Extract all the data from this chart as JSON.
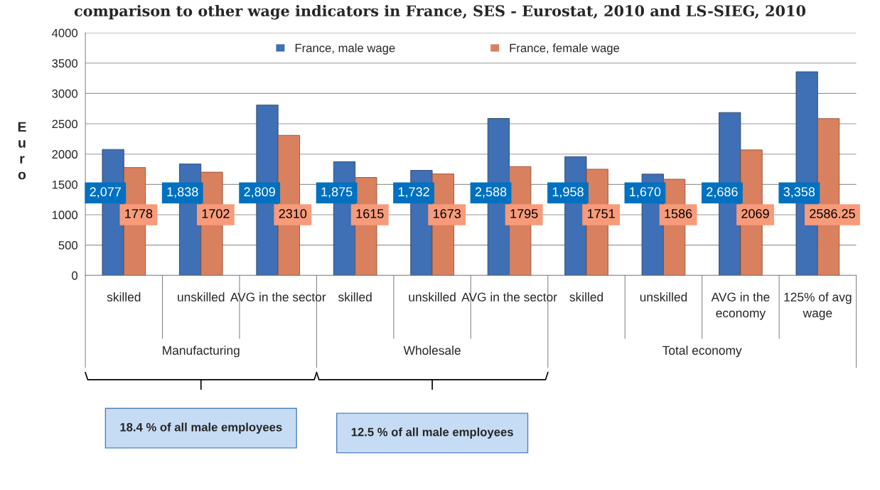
{
  "chart_data": {
    "type": "bar",
    "title": "comparison to other wage indicators in France, SES - Eurostat, 2010 and LS-SIEG, 2010",
    "ylabel": "Euro",
    "categories": [
      "skilled",
      "unskilled",
      "AVG in the sector",
      "skilled",
      "unskilled",
      "AVG in the sector",
      "skilled",
      "unskilled",
      "AVG in the economy",
      "125% of avg wage"
    ],
    "series": [
      {
        "name": "France, male wage",
        "color": "#3f6fb4",
        "values": [
          2077,
          1838,
          2809,
          1875,
          1732,
          2588,
          1958,
          1670,
          2686,
          3358
        ],
        "value_labels": [
          "2,077",
          "1,838",
          "2,809",
          "1,875",
          "1,732",
          "2,588",
          "1,958",
          "1,670",
          "2,686",
          "3,358"
        ]
      },
      {
        "name": "France, female wage",
        "color": "#d9805e",
        "values": [
          1778,
          1702,
          2310,
          1615,
          1673,
          1795,
          1751,
          1586,
          2069,
          2586.25
        ],
        "value_labels": [
          "1778",
          "1702",
          "2310",
          "1615",
          "1673",
          "1795",
          "1751",
          "1586",
          "2069",
          "2586.25"
        ]
      }
    ],
    "ylim": [
      0,
      4000
    ],
    "yticks": [
      0,
      500,
      1000,
      1500,
      2000,
      2500,
      3000,
      3500,
      4000
    ],
    "grid": "y",
    "legend": "top",
    "annotations": [
      "Manufacturing",
      "Wholesale",
      "Total economy",
      "18.4 % of all male employees",
      "12.5 % of all male employees"
    ]
  }
}
